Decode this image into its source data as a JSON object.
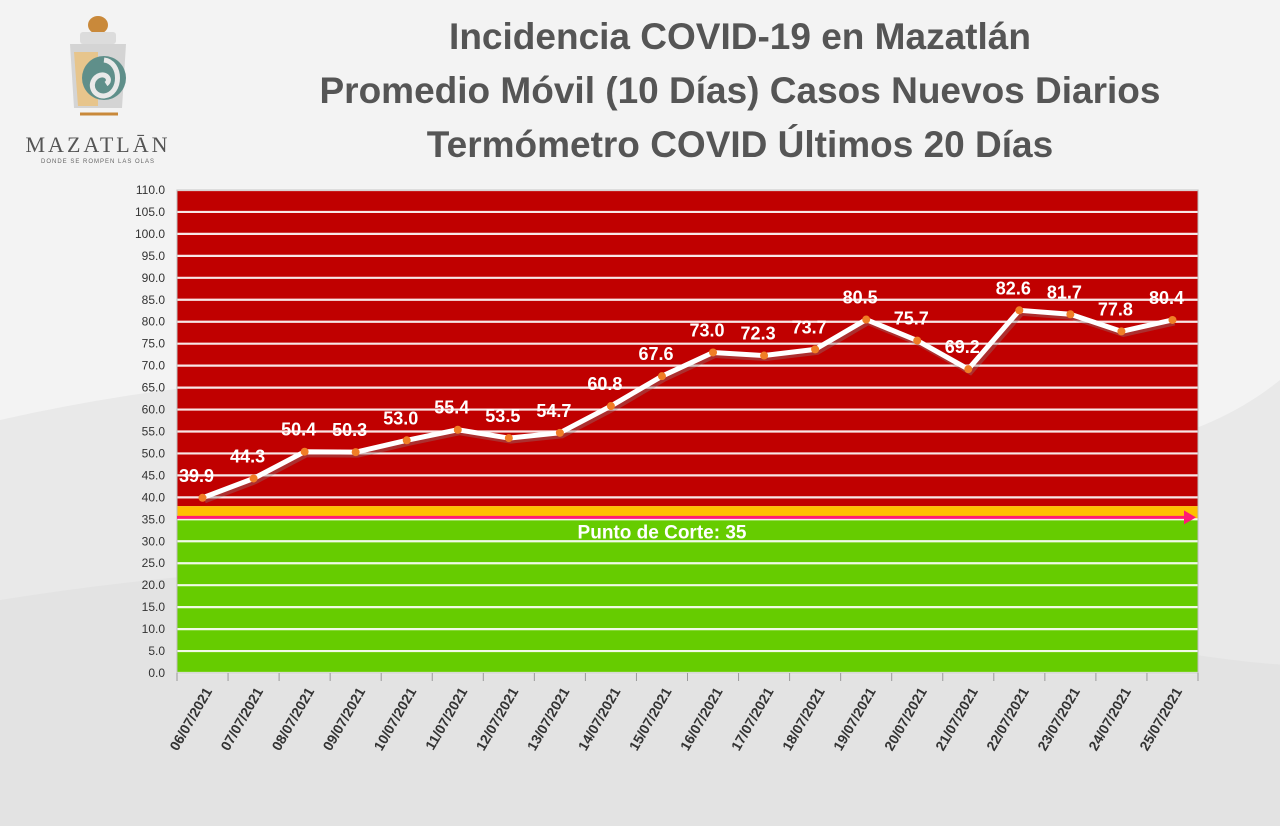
{
  "logo": {
    "name": "MAZATLĀN",
    "tagline": "DONDE SE ROMPEN LAS OLAS"
  },
  "titles": {
    "line1": "Incidencia COVID-19 en Mazatlán",
    "line2": "Promedio Móvil (10 Días) Casos Nuevos Diarios",
    "line3": "Termómetro COVID Últimos 20 Días"
  },
  "colors": {
    "red_zone": "#c00000",
    "yellow_band": "#ffc000",
    "green_zone": "#66cc00",
    "line": "#ffffff",
    "marker": "#f07e26",
    "cutoff_arrow": "#ff1a75",
    "title_text": "#555555"
  },
  "chart_data": {
    "type": "line",
    "categories": [
      "06/07/2021",
      "07/07/2021",
      "08/07/2021",
      "09/07/2021",
      "10/07/2021",
      "11/07/2021",
      "12/07/2021",
      "13/07/2021",
      "14/07/2021",
      "15/07/2021",
      "16/07/2021",
      "17/07/2021",
      "18/07/2021",
      "19/07/2021",
      "20/07/2021",
      "21/07/2021",
      "22/07/2021",
      "23/07/2021",
      "24/07/2021",
      "25/07/2021"
    ],
    "values": [
      39.9,
      44.3,
      50.4,
      50.3,
      53.0,
      55.4,
      53.5,
      54.7,
      60.8,
      67.6,
      73.0,
      72.3,
      73.7,
      80.5,
      75.7,
      69.2,
      82.6,
      81.7,
      77.8,
      80.4
    ],
    "value_labels": [
      "39.9",
      "44.3",
      "50.4",
      "50.3",
      "53.0",
      "55.4",
      "53.5",
      "54.7",
      "60.8",
      "67.6",
      "73.0",
      "72.3",
      "73.7",
      "80.5",
      "75.7",
      "69.2",
      "82.6",
      "81.7",
      "77.8",
      "80.4"
    ],
    "ylim": [
      0,
      110
    ],
    "ytick_step": 5,
    "ytick_labels": [
      "0.0",
      "5.0",
      "10.0",
      "15.0",
      "20.0",
      "25.0",
      "30.0",
      "35.0",
      "40.0",
      "45.0",
      "50.0",
      "55.0",
      "60.0",
      "65.0",
      "70.0",
      "75.0",
      "80.0",
      "85.0",
      "90.0",
      "95.0",
      "100.0",
      "105.0",
      "110.0"
    ],
    "grid": true,
    "zones": {
      "green_max": 35,
      "yellow_min": 35,
      "yellow_max": 38,
      "red_min": 38
    },
    "cutoff": {
      "value": 35,
      "label": "Punto de Corte: 35"
    }
  }
}
